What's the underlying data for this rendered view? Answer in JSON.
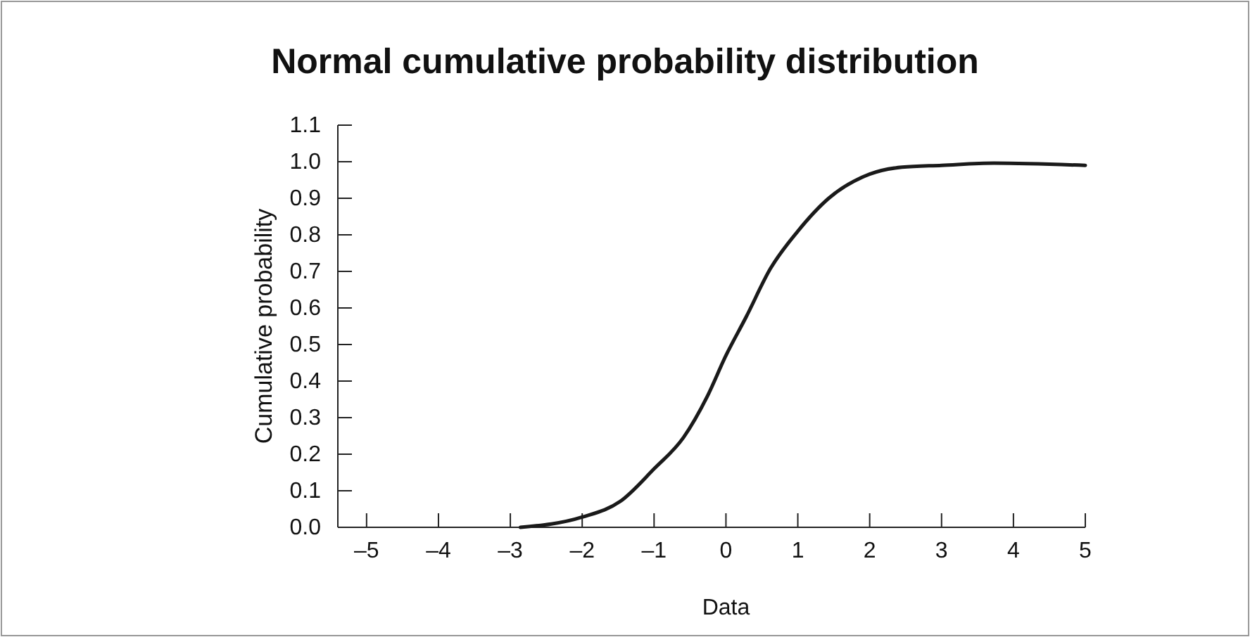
{
  "chart_data": {
    "type": "line",
    "title": "Normal cumulative probability distribution",
    "xlabel": "Data",
    "ylabel": "Cumulative probability",
    "x": [
      -2.86,
      -2.0,
      -1.47,
      -1.0,
      -0.59,
      -0.26,
      0,
      0.28,
      0.62,
      1.0,
      1.43,
      2.0,
      2.45,
      3.0,
      3.73,
      5.0
    ],
    "series": [
      {
        "color": "#1a1a1a",
        "values": [
          0,
          0.028,
          0.071,
          0.16,
          0.246,
          0.358,
          0.47,
          0.575,
          0.708,
          0.81,
          0.9,
          0.966,
          0.985,
          0.99,
          0.996,
          0.99
        ]
      }
    ],
    "xlim": [
      -5.4,
      5
    ],
    "ylim": [
      0,
      1.1
    ],
    "xticks": [
      {
        "value": -5,
        "label": "–5"
      },
      {
        "value": -4,
        "label": "–4"
      },
      {
        "value": -3,
        "label": "–3"
      },
      {
        "value": -2,
        "label": "–2"
      },
      {
        "value": -1,
        "label": "–1"
      },
      0,
      1,
      2,
      3,
      4,
      5
    ],
    "yticks": [
      {
        "value": 0,
        "label": "0.0"
      },
      0.1,
      0.2,
      0.3,
      0.4,
      0.5,
      0.6,
      0.7,
      0.8,
      0.9,
      {
        "value": 1,
        "label": "1.0"
      },
      1.1
    ],
    "grid": false,
    "marker": "none",
    "line_style": "solid"
  }
}
